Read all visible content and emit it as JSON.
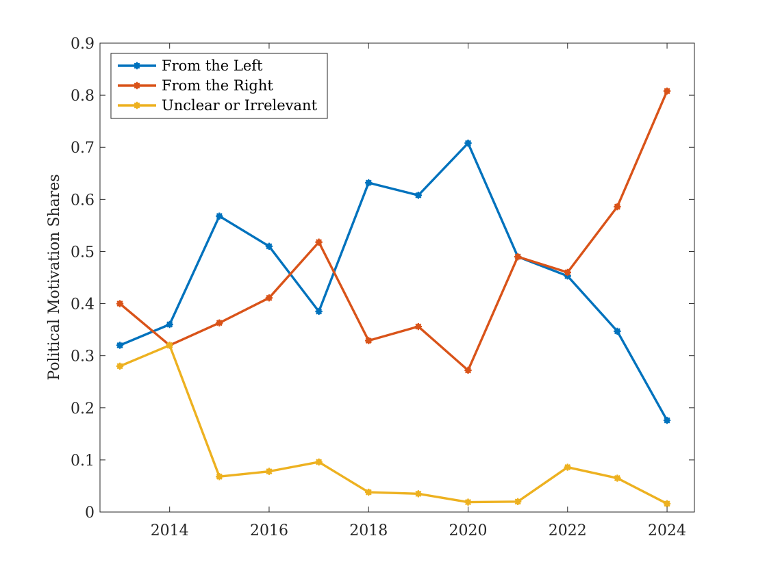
{
  "chart_data": {
    "type": "line",
    "title": "",
    "xlabel": "",
    "ylabel": "Political Motivation Shares",
    "x": [
      2013,
      2014,
      2015,
      2016,
      2017,
      2018,
      2019,
      2020,
      2021,
      2022,
      2023,
      2024
    ],
    "xlim": [
      2012.6,
      2024.55
    ],
    "ylim": [
      0,
      0.9
    ],
    "xticks": [
      2014,
      2016,
      2018,
      2020,
      2022,
      2024
    ],
    "yticks": [
      0,
      0.1,
      0.2,
      0.3,
      0.4,
      0.5,
      0.6,
      0.7,
      0.8,
      0.9
    ],
    "legend_position": "top-left",
    "grid": false,
    "series": [
      {
        "name": "From the Left",
        "color": "#0072BD",
        "values": [
          0.32,
          0.36,
          0.568,
          0.51,
          0.385,
          0.632,
          0.608,
          0.708,
          0.49,
          0.453,
          0.347,
          0.176
        ]
      },
      {
        "name": "From the Right",
        "color": "#D95319",
        "values": [
          0.4,
          0.32,
          0.363,
          0.411,
          0.518,
          0.329,
          0.356,
          0.272,
          0.49,
          0.46,
          0.586,
          0.808
        ]
      },
      {
        "name": "Unclear or Irrelevant",
        "color": "#EDB120",
        "values": [
          0.28,
          0.32,
          0.068,
          0.078,
          0.096,
          0.038,
          0.035,
          0.019,
          0.02,
          0.086,
          0.065,
          0.016
        ]
      }
    ]
  }
}
